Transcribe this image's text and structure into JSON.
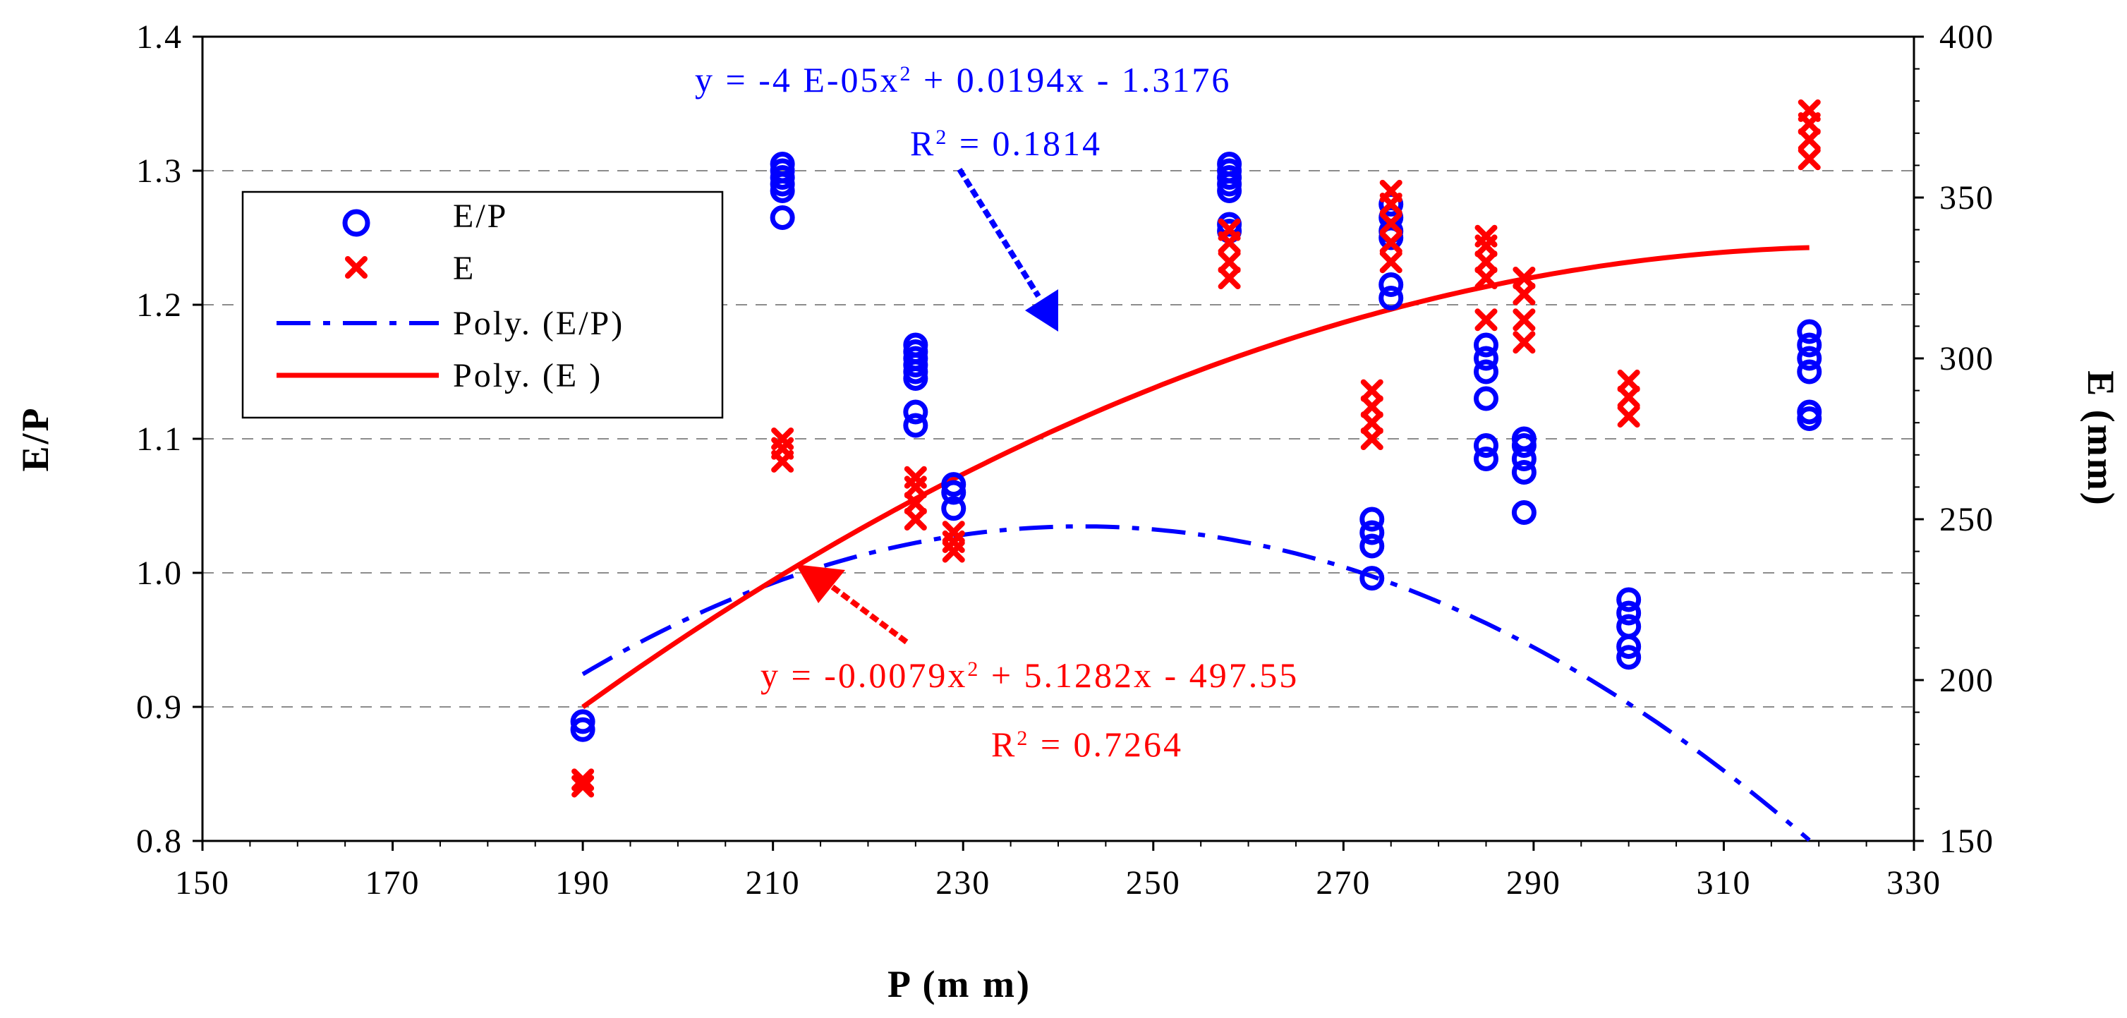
{
  "chart_data": {
    "type": "scatter",
    "x_axis": {
      "label": "P (m m)",
      "range": [
        150,
        330
      ],
      "ticks": [
        "150",
        "170",
        "190",
        "210",
        "230",
        "250",
        "270",
        "290",
        "310",
        "330"
      ]
    },
    "y_left": {
      "label": "E/P",
      "range": [
        0.8,
        1.4
      ],
      "ticks": [
        "0.8",
        "0.9",
        "1.0",
        "1.1",
        "1.2",
        "1.3",
        "1.4"
      ],
      "gridlines": [
        0.9,
        1.0,
        1.1,
        1.2,
        1.3
      ]
    },
    "y_right": {
      "label": "E (mm)",
      "range": [
        150,
        400
      ],
      "ticks": [
        "150",
        "200",
        "250",
        "300",
        "350",
        "400"
      ]
    },
    "series": [
      {
        "name": "E/P",
        "kind": "scatter-circle",
        "axis": "left",
        "color": "#0000ff",
        "points": [
          [
            190,
            0.883
          ],
          [
            190,
            0.889
          ],
          [
            211,
            1.265
          ],
          [
            211,
            1.285
          ],
          [
            211,
            1.29
          ],
          [
            211,
            1.295
          ],
          [
            211,
            1.3
          ],
          [
            211,
            1.305
          ],
          [
            225,
            1.11
          ],
          [
            225,
            1.12
          ],
          [
            225,
            1.145
          ],
          [
            225,
            1.15
          ],
          [
            225,
            1.155
          ],
          [
            225,
            1.16
          ],
          [
            225,
            1.165
          ],
          [
            225,
            1.17
          ],
          [
            229,
            1.048
          ],
          [
            229,
            1.06
          ],
          [
            229,
            1.066
          ],
          [
            258,
            1.255
          ],
          [
            258,
            1.26
          ],
          [
            258,
            1.285
          ],
          [
            258,
            1.29
          ],
          [
            258,
            1.295
          ],
          [
            258,
            1.3
          ],
          [
            258,
            1.305
          ],
          [
            273,
            0.996
          ],
          [
            273,
            1.02
          ],
          [
            273,
            1.03
          ],
          [
            273,
            1.04
          ],
          [
            275,
            1.205
          ],
          [
            275,
            1.215
          ],
          [
            275,
            1.25
          ],
          [
            275,
            1.255
          ],
          [
            275,
            1.265
          ],
          [
            275,
            1.275
          ],
          [
            285,
            1.085
          ],
          [
            285,
            1.095
          ],
          [
            285,
            1.13
          ],
          [
            285,
            1.15
          ],
          [
            285,
            1.16
          ],
          [
            285,
            1.17
          ],
          [
            289,
            1.045
          ],
          [
            289,
            1.075
          ],
          [
            289,
            1.085
          ],
          [
            289,
            1.095
          ],
          [
            289,
            1.1
          ],
          [
            300,
            0.937
          ],
          [
            300,
            0.945
          ],
          [
            300,
            0.96
          ],
          [
            300,
            0.97
          ],
          [
            300,
            0.98
          ],
          [
            319,
            1.115
          ],
          [
            319,
            1.12
          ],
          [
            319,
            1.15
          ],
          [
            319,
            1.16
          ],
          [
            319,
            1.17
          ],
          [
            319,
            1.18
          ]
        ]
      },
      {
        "name": "E",
        "kind": "scatter-x",
        "axis": "right",
        "color": "#ff0000",
        "points": [
          [
            190,
            167
          ],
          [
            190,
            169
          ],
          [
            211,
            268
          ],
          [
            211,
            272
          ],
          [
            211,
            275
          ],
          [
            225,
            250
          ],
          [
            225,
            255
          ],
          [
            225,
            260
          ],
          [
            225,
            263
          ],
          [
            229,
            240
          ],
          [
            229,
            243
          ],
          [
            229,
            246
          ],
          [
            258,
            325
          ],
          [
            258,
            330
          ],
          [
            258,
            336
          ],
          [
            258,
            340
          ],
          [
            273,
            275
          ],
          [
            273,
            280
          ],
          [
            273,
            285
          ],
          [
            273,
            290
          ],
          [
            275,
            330
          ],
          [
            275,
            336
          ],
          [
            275,
            342
          ],
          [
            275,
            348
          ],
          [
            275,
            352
          ],
          [
            285,
            312
          ],
          [
            285,
            325
          ],
          [
            285,
            330
          ],
          [
            285,
            335
          ],
          [
            285,
            338
          ],
          [
            289,
            305
          ],
          [
            289,
            312
          ],
          [
            289,
            320
          ],
          [
            289,
            325
          ],
          [
            300,
            282
          ],
          [
            300,
            288
          ],
          [
            300,
            293
          ],
          [
            319,
            362
          ],
          [
            319,
            368
          ],
          [
            319,
            373
          ],
          [
            319,
            377
          ]
        ]
      },
      {
        "name": "Poly. (E/P)",
        "kind": "trend-dashdot",
        "axis": "left",
        "color": "#0000ff",
        "coefficients": {
          "a": -4e-05,
          "b": 0.0194,
          "c": -1.3176
        },
        "x_range": [
          190,
          319
        ]
      },
      {
        "name": "Poly. (E )",
        "kind": "trend-solid",
        "axis": "right",
        "color": "#ff0000",
        "coefficients": {
          "a": -0.0079,
          "b": 5.1282,
          "c": -497.55
        },
        "x_range": [
          190,
          319
        ]
      }
    ],
    "legend": {
      "position": "upper-left",
      "entries": [
        {
          "symbol": "circle",
          "label": "E/P"
        },
        {
          "symbol": "x",
          "label": "E"
        },
        {
          "symbol": "dashdot",
          "label": "Poly. (E/P)"
        },
        {
          "symbol": "solid",
          "label": "Poly. (E )"
        }
      ]
    },
    "annotations": {
      "blue_equation": {
        "text_prefix": "y = -4 E-05x",
        "text_suffix": " + 0.0194x - 1.3176",
        "r2_prefix": "R",
        "r2_suffix": " = 0.1814",
        "color": "#0000ff"
      },
      "red_equation": {
        "text_prefix": "y = -0.0079x",
        "text_suffix": " + 5.1282x - 497.55",
        "r2_prefix": "R",
        "r2_suffix": " = 0.7264",
        "color": "#ff0000"
      },
      "superscript": "2"
    }
  }
}
